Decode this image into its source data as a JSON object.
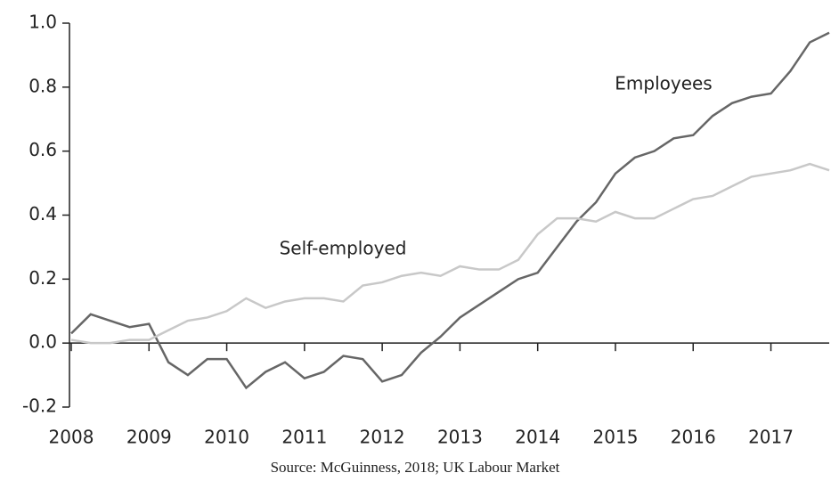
{
  "chart_data": {
    "type": "line",
    "x": [
      2008,
      2008.25,
      2008.5,
      2008.75,
      2009,
      2009.25,
      2009.5,
      2009.75,
      2010,
      2010.25,
      2010.5,
      2010.75,
      2011,
      2011.25,
      2011.5,
      2011.75,
      2012,
      2012.25,
      2012.5,
      2012.75,
      2013,
      2013.25,
      2013.5,
      2013.75,
      2014,
      2014.25,
      2014.5,
      2014.75,
      2015,
      2015.25,
      2015.5,
      2015.75,
      2016,
      2016.25,
      2016.5,
      2016.75,
      2017,
      2017.25,
      2017.5,
      2017.75
    ],
    "series": [
      {
        "name": "Employees",
        "color": "#666666",
        "values": [
          0.03,
          0.09,
          0.07,
          0.05,
          0.06,
          -0.06,
          -0.1,
          -0.05,
          -0.05,
          -0.14,
          -0.09,
          -0.06,
          -0.11,
          -0.09,
          -0.04,
          -0.05,
          -0.12,
          -0.1,
          -0.03,
          0.02,
          0.08,
          0.12,
          0.16,
          0.2,
          0.22,
          0.3,
          0.38,
          0.44,
          0.53,
          0.58,
          0.6,
          0.64,
          0.65,
          0.71,
          0.75,
          0.77,
          0.78,
          0.85,
          0.94,
          0.97
        ]
      },
      {
        "name": "Self-employed",
        "color": "#c8c8c8",
        "values": [
          0.01,
          0.0,
          0.0,
          0.01,
          0.01,
          0.04,
          0.07,
          0.08,
          0.1,
          0.14,
          0.11,
          0.13,
          0.14,
          0.14,
          0.13,
          0.18,
          0.19,
          0.21,
          0.22,
          0.21,
          0.24,
          0.23,
          0.23,
          0.26,
          0.34,
          0.39,
          0.39,
          0.38,
          0.41,
          0.39,
          0.39,
          0.42,
          0.45,
          0.46,
          0.49,
          0.52,
          0.53,
          0.54,
          0.56,
          0.54
        ]
      }
    ],
    "xlim": [
      2008,
      2017.75
    ],
    "xticks": [
      2008,
      2009,
      2010,
      2011,
      2012,
      2013,
      2014,
      2015,
      2016,
      2017
    ],
    "ylim": [
      -0.2,
      1.0
    ],
    "yticks": [
      -0.2,
      {
        "value": 0,
        "label": "0.0"
      },
      0.2,
      0.4,
      0.6,
      0.8,
      {
        "value": 1,
        "label": "1.0"
      }
    ],
    "source": "Source: McGuinness, 2018; UK Labour Market"
  }
}
